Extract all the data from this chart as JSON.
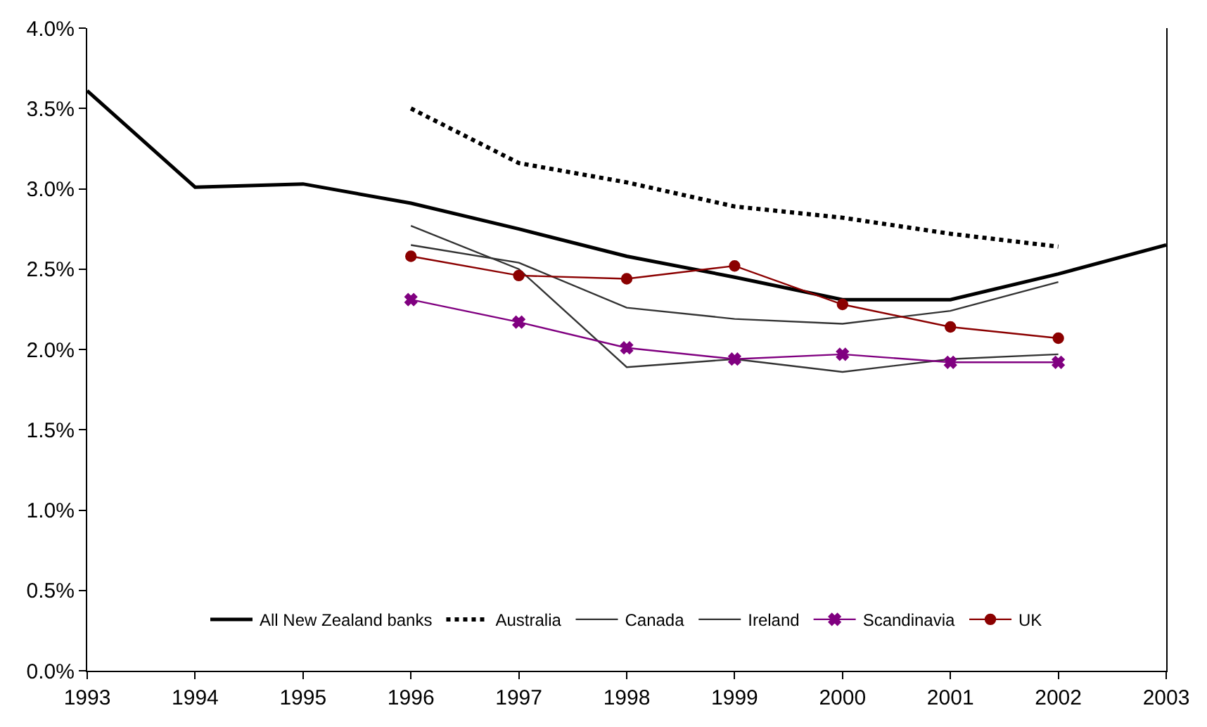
{
  "chart_data": {
    "type": "line",
    "x": [
      1993,
      1994,
      1995,
      1996,
      1997,
      1998,
      1999,
      2000,
      2001,
      2002,
      2003
    ],
    "series": [
      {
        "name": "All New Zealand banks",
        "color": "#000000",
        "line_style": "solid",
        "marker": "none",
        "values": [
          3.61,
          3.01,
          3.03,
          2.91,
          2.75,
          2.58,
          2.45,
          2.31,
          2.31,
          2.47,
          2.65
        ]
      },
      {
        "name": "Australia",
        "color": "#000000",
        "line_style": "dotted",
        "marker": "none",
        "values": [
          null,
          null,
          null,
          3.5,
          3.16,
          3.04,
          2.89,
          2.82,
          2.72,
          2.64,
          null
        ]
      },
      {
        "name": "Canada",
        "color": "#333333",
        "line_style": "solid",
        "marker": "none",
        "values": [
          null,
          null,
          null,
          2.65,
          2.54,
          2.26,
          2.19,
          2.16,
          2.24,
          2.42,
          null
        ]
      },
      {
        "name": "Ireland",
        "color": "#333333",
        "line_style": "solid",
        "marker": "none",
        "values": [
          null,
          null,
          null,
          2.77,
          2.5,
          1.89,
          1.94,
          1.86,
          1.94,
          1.97,
          null
        ]
      },
      {
        "name": "Scandinavia",
        "color": "#800080",
        "line_style": "solid",
        "marker": "cross",
        "values": [
          null,
          null,
          null,
          2.31,
          2.17,
          2.01,
          1.94,
          1.97,
          1.92,
          1.92,
          null
        ]
      },
      {
        "name": "UK",
        "color": "#8b0000",
        "line_style": "solid",
        "marker": "circle",
        "values": [
          null,
          null,
          null,
          2.58,
          2.46,
          2.44,
          2.52,
          2.28,
          2.14,
          2.07,
          null
        ]
      }
    ],
    "xlim": [
      1993,
      2003
    ],
    "xticks": [
      1993,
      1994,
      1995,
      1996,
      1997,
      1998,
      1999,
      2000,
      2001,
      2002,
      2003
    ],
    "ylim": [
      0,
      4
    ],
    "yticks": [
      {
        "value": 0,
        "label": "0.0%"
      },
      {
        "value": 0.5,
        "label": "0.5%"
      },
      {
        "value": 1,
        "label": "1.0%"
      },
      {
        "value": 1.5,
        "label": "1.5%"
      },
      {
        "value": 2,
        "label": "2.0%"
      },
      {
        "value": 2.5,
        "label": "2.5%"
      },
      {
        "value": 3,
        "label": "3.0%"
      },
      {
        "value": 3.5,
        "label": "3.5%"
      },
      {
        "value": 4,
        "label": "4.0%"
      }
    ],
    "legend": "bottom"
  }
}
